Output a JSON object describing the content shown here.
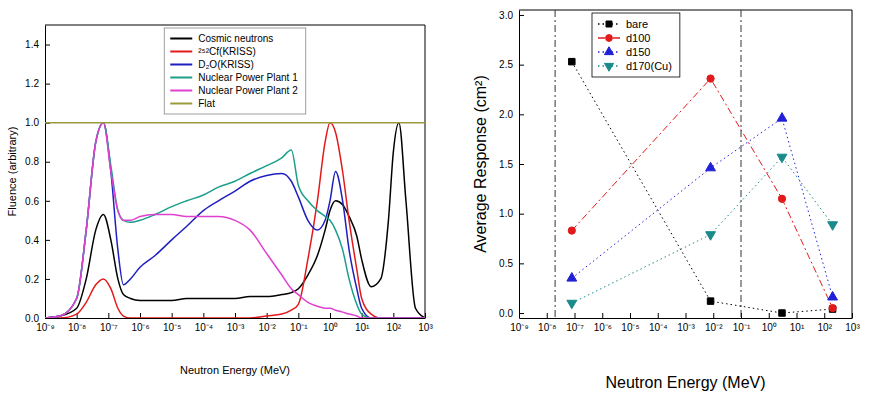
{
  "chart_data": [
    {
      "type": "line",
      "xlabel": "Neutron Energy (MeV)",
      "ylabel": "Fluence (arbitrary)",
      "log": "x",
      "legend": "upper center",
      "xlim": [
        1e-09,
        1000
      ],
      "ylim": [
        0,
        1.5
      ],
      "xticks": [
        {
          "value": 1e-09,
          "label": "10⁻⁹"
        },
        {
          "value": 1e-08,
          "label": "10⁻⁸"
        },
        {
          "value": 1e-07,
          "label": "10⁻⁷"
        },
        {
          "value": 1e-06,
          "label": "10⁻⁶"
        },
        {
          "value": 1e-05,
          "label": "10⁻⁵"
        },
        {
          "value": 0.0001,
          "label": "10⁻⁴"
        },
        {
          "value": 0.001,
          "label": "10⁻³"
        },
        {
          "value": 0.01,
          "label": "10⁻²"
        },
        {
          "value": 0.1,
          "label": "10⁻¹"
        },
        {
          "value": 1,
          "label": "10⁰"
        },
        {
          "value": 10,
          "label": "10¹"
        },
        {
          "value": 100,
          "label": "10²"
        },
        {
          "value": 1000,
          "label": "10³"
        }
      ],
      "yticks": [
        {
          "value": 0,
          "label": "0.0"
        },
        0.2,
        0.4,
        0.6,
        0.8,
        {
          "value": 1,
          "label": "1.0"
        },
        1.2,
        1.4
      ],
      "x": [
        1e-09,
        3e-09,
        1e-08,
        2e-08,
        4e-08,
        7e-08,
        1.2e-07,
        2e-07,
        3e-07,
        5e-07,
        1e-06,
        3e-06,
        1e-05,
        3e-05,
        0.0001,
        0.0003,
        0.001,
        0.003,
        0.01,
        0.03,
        0.06,
        0.1,
        0.2,
        0.4,
        0.7,
        1,
        1.5,
        2.5,
        4,
        7,
        10,
        20,
        40,
        70,
        100,
        150,
        250,
        500,
        1000
      ],
      "series": [
        {
          "name": "Cosmic neutrons",
          "color": "#000000",
          "line_style": "solid",
          "values": [
            0,
            0.01,
            0.05,
            0.2,
            0.45,
            0.53,
            0.4,
            0.2,
            0.12,
            0.1,
            0.09,
            0.09,
            0.09,
            0.1,
            0.1,
            0.1,
            0.1,
            0.11,
            0.11,
            0.12,
            0.13,
            0.15,
            0.22,
            0.32,
            0.45,
            0.55,
            0.6,
            0.58,
            0.52,
            0.42,
            0.3,
            0.16,
            0.2,
            0.5,
            0.85,
            1.0,
            0.6,
            0.05,
            0
          ]
        },
        {
          "name": "²⁵²Cf(KRISS)",
          "color": "#e31a1c",
          "line_style": "solid",
          "values": [
            0,
            0,
            0.02,
            0.08,
            0.17,
            0.2,
            0.15,
            0.05,
            0.01,
            0,
            0,
            0,
            0,
            0,
            0,
            0,
            0,
            0,
            0.01,
            0.02,
            0.04,
            0.07,
            0.3,
            0.6,
            0.9,
            1.0,
            0.95,
            0.75,
            0.5,
            0.25,
            0.1,
            0.02,
            0,
            0,
            0,
            0,
            0,
            0,
            0
          ]
        },
        {
          "name": "D₂O(KRISS)",
          "color": "#1f1fbf",
          "line_style": "solid",
          "values": [
            0,
            0.01,
            0.1,
            0.45,
            0.9,
            1.0,
            0.75,
            0.35,
            0.17,
            0.2,
            0.26,
            0.32,
            0.4,
            0.47,
            0.55,
            0.6,
            0.65,
            0.7,
            0.73,
            0.74,
            0.7,
            0.62,
            0.5,
            0.45,
            0.5,
            0.6,
            0.75,
            0.6,
            0.35,
            0.15,
            0.05,
            0,
            0,
            0,
            0,
            0,
            0,
            0,
            0
          ]
        },
        {
          "name": "Nuclear Power Plant 1",
          "color": "#1b9e8a",
          "line_style": "solid",
          "values": [
            0,
            0.01,
            0.1,
            0.45,
            0.9,
            1.0,
            0.78,
            0.55,
            0.5,
            0.49,
            0.5,
            0.53,
            0.57,
            0.6,
            0.63,
            0.67,
            0.7,
            0.74,
            0.78,
            0.82,
            0.86,
            0.68,
            0.6,
            0.55,
            0.52,
            0.5,
            0.45,
            0.35,
            0.2,
            0.07,
            0.02,
            0,
            0,
            0,
            0,
            0,
            0,
            0,
            0
          ]
        },
        {
          "name": "Nuclear Power Plant 2",
          "color": "#e040d0",
          "line_style": "solid",
          "values": [
            0,
            0.01,
            0.1,
            0.45,
            0.9,
            1.0,
            0.75,
            0.55,
            0.5,
            0.5,
            0.52,
            0.53,
            0.53,
            0.52,
            0.52,
            0.52,
            0.5,
            0.45,
            0.33,
            0.22,
            0.15,
            0.12,
            0.08,
            0.06,
            0.05,
            0.05,
            0.04,
            0.03,
            0.02,
            0.01,
            0,
            0,
            0,
            0,
            0,
            0,
            0,
            0,
            0
          ]
        },
        {
          "name": "Flat",
          "color": "#9a9a3a",
          "line_style": "solid",
          "values": [
            1.0,
            1.0,
            1.0,
            1.0,
            1.0,
            1.0,
            1.0,
            1.0,
            1.0,
            1.0,
            1.0,
            1.0,
            1.0,
            1.0,
            1.0,
            1.0,
            1.0,
            1.0,
            1.0,
            1.0,
            1.0,
            1.0,
            1.0,
            1.0,
            1.0,
            1.0,
            1.0,
            1.0,
            1.0,
            1.0,
            1.0,
            1.0,
            1.0,
            1.0,
            1.0,
            1.0,
            1.0,
            1.0,
            1.0
          ]
        }
      ]
    },
    {
      "type": "line",
      "xlabel": "Neutron Energy (MeV)",
      "ylabel": "Average Response (cm²)",
      "log": "x",
      "legend": "upper left",
      "xlim": [
        1e-09,
        1000
      ],
      "ylim": [
        -0.05,
        3.05
      ],
      "xticks": [
        {
          "value": 1e-09,
          "label": "10⁻⁹"
        },
        {
          "value": 1e-08,
          "label": "10⁻⁸"
        },
        {
          "value": 1e-07,
          "label": "10⁻⁷"
        },
        {
          "value": 1e-06,
          "label": "10⁻⁶"
        },
        {
          "value": 1e-05,
          "label": "10⁻⁵"
        },
        {
          "value": 0.0001,
          "label": "10⁻⁴"
        },
        {
          "value": 0.001,
          "label": "10⁻³"
        },
        {
          "value": 0.01,
          "label": "10⁻²"
        },
        {
          "value": 0.1,
          "label": "10⁻¹"
        },
        {
          "value": 1,
          "label": "10⁰"
        },
        {
          "value": 10,
          "label": "10¹"
        },
        {
          "value": 100,
          "label": "10²"
        },
        {
          "value": 1000,
          "label": "10³"
        }
      ],
      "yticks": [
        {
          "value": 0,
          "label": "0.0"
        },
        0.5,
        {
          "value": 1,
          "label": "1.0"
        },
        1.5,
        {
          "value": 2,
          "label": "2.0"
        },
        2.5,
        {
          "value": 3,
          "label": "3.0"
        }
      ],
      "vlines": [
        2e-08,
        0.1
      ],
      "x": [
        8e-08,
        0.008,
        3,
        200
      ],
      "series": [
        {
          "name": "bare",
          "color": "#000000",
          "marker": "square",
          "line_style": "dotted",
          "values": [
            2.53,
            0.12,
            0.0,
            0.04
          ]
        },
        {
          "name": "d100",
          "color": "#e31a1c",
          "marker": "circle",
          "line_style": "dash-dot",
          "values": [
            0.83,
            2.36,
            1.15,
            0.05
          ]
        },
        {
          "name": "d150",
          "color": "#2020d8",
          "marker": "triangle-up",
          "line_style": "dotted",
          "values": [
            0.35,
            1.46,
            1.96,
            0.16
          ]
        },
        {
          "name": "d170(Cu)",
          "color": "#1a8a8a",
          "marker": "triangle-down",
          "line_style": "dotted",
          "values": [
            0.1,
            0.79,
            1.57,
            0.89
          ]
        }
      ]
    }
  ]
}
